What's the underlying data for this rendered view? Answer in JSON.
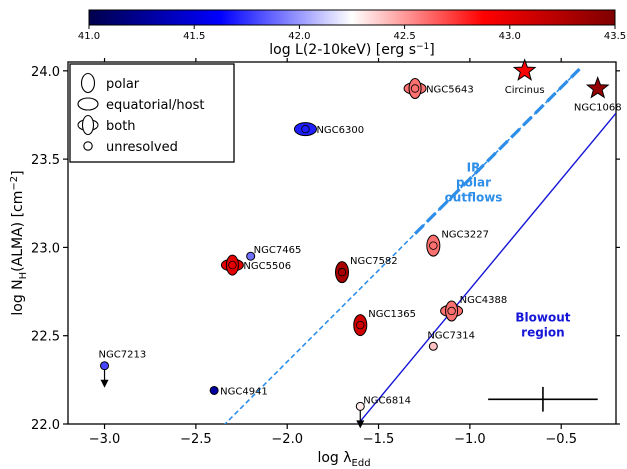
{
  "chart_data": {
    "type": "scatter",
    "xlabel": "log λ",
    "xlabel_sub": "Edd",
    "ylabel": "log N",
    "ylabel_sub": "H",
    "ylabel_rest": "(ALMA) [cm",
    "ylabel_sup": "−2",
    "ylabel_end": "]",
    "xlim": [
      -3.2,
      -0.2
    ],
    "ylim": [
      22.0,
      24.05
    ],
    "xticks": [
      -3.0,
      -2.5,
      -2.0,
      -1.5,
      -1.0,
      -0.5
    ],
    "xtick_labels": [
      "−3.0",
      "−2.5",
      "−2.0",
      "−1.5",
      "−1.0",
      "−0.5"
    ],
    "yticks": [
      22.0,
      22.5,
      23.0,
      23.5,
      24.0
    ],
    "ytick_labels": [
      "22.0",
      "22.5",
      "23.0",
      "23.5",
      "24.0"
    ],
    "colorbar": {
      "label_pre": "log L(2-10keV) [erg s",
      "label_sup": "−1",
      "label_post": "]",
      "range": [
        41.0,
        43.5
      ],
      "ticks": [
        41.0,
        41.5,
        42.0,
        42.5,
        43.0,
        43.5
      ],
      "tick_labels": [
        "41.0",
        "41.5",
        "42.0",
        "42.5",
        "43.0",
        "43.5"
      ],
      "colormap": "seismic"
    },
    "legend": {
      "position": "upper-left",
      "entries": [
        {
          "shape": "polar",
          "label": "polar"
        },
        {
          "shape": "equatorial",
          "label": "equatorial/host"
        },
        {
          "shape": "both",
          "label": "both"
        },
        {
          "shape": "unresolved",
          "label": "unresolved"
        }
      ]
    },
    "sources": [
      {
        "name": "NGC1068",
        "x": -0.3,
        "y": 23.9,
        "logL": 43.4,
        "marker": "star",
        "label_pos": "below"
      },
      {
        "name": "Circinus",
        "x": -0.7,
        "y": 24.0,
        "logL": 42.9,
        "marker": "star",
        "label_pos": "below"
      },
      {
        "name": "NGC5643",
        "x": -1.3,
        "y": 23.9,
        "logL": 42.6,
        "marker": "both",
        "label_pos": "right"
      },
      {
        "name": "NGC6300",
        "x": -1.9,
        "y": 23.67,
        "logL": 41.7,
        "marker": "equatorial",
        "label_pos": "right"
      },
      {
        "name": "NGC3227",
        "x": -1.2,
        "y": 23.01,
        "logL": 42.6,
        "marker": "polar",
        "label_pos": "above-right"
      },
      {
        "name": "NGC7582",
        "x": -1.7,
        "y": 22.86,
        "logL": 43.3,
        "marker": "polar",
        "label_pos": "above-right"
      },
      {
        "name": "NGC5506",
        "x": -2.3,
        "y": 22.9,
        "logL": 43.0,
        "marker": "both",
        "label_pos": "right"
      },
      {
        "name": "NGC7465",
        "x": -2.2,
        "y": 22.95,
        "logL": 41.9,
        "marker": "unresolved",
        "label_pos": "above-right"
      },
      {
        "name": "NGC4388",
        "x": -1.1,
        "y": 22.64,
        "logL": 42.6,
        "marker": "both",
        "label_pos": "above-right"
      },
      {
        "name": "NGC1365",
        "x": -1.6,
        "y": 22.56,
        "logL": 43.1,
        "marker": "polar",
        "label_pos": "above-right"
      },
      {
        "name": "NGC7314",
        "x": -1.2,
        "y": 22.44,
        "logL": 42.4,
        "marker": "unresolved",
        "label_pos": "above"
      },
      {
        "name": "NGC7213",
        "x": -3.0,
        "y": 22.33,
        "logL": 41.8,
        "marker": "unresolved",
        "upper_limit": true,
        "label_pos": "above"
      },
      {
        "name": "NGC4941",
        "x": -2.4,
        "y": 22.19,
        "logL": 41.3,
        "marker": "unresolved",
        "label_pos": "right"
      },
      {
        "name": "NGC6814",
        "x": -1.6,
        "y": 22.1,
        "logL": 42.3,
        "marker": "unresolved",
        "upper_limit": true,
        "label_pos": "above-right"
      }
    ],
    "lines": [
      {
        "name": "IR polar outflows",
        "from": [
          -2.35,
          21.99
        ],
        "to": [
          -0.4,
          24.01
        ],
        "style": "dashed",
        "color": "#2e8ee8"
      },
      {
        "name": "Blowout region",
        "from": [
          -1.62,
          21.99
        ],
        "to": [
          -0.2,
          23.76
        ],
        "style": "solid",
        "color": "#1616d8"
      }
    ],
    "annotations": [
      {
        "lines": [
          "IR",
          "polar",
          "outflows"
        ],
        "x": -0.98,
        "y": 23.43,
        "color": "#2e8ee8"
      },
      {
        "lines": [
          "Blowout",
          "region"
        ],
        "x": -0.6,
        "y": 22.58,
        "color": "#1616d8"
      }
    ],
    "error_bar": {
      "x": -0.6,
      "y": 22.14,
      "x_err": 0.3,
      "y_err": 0.07
    }
  }
}
